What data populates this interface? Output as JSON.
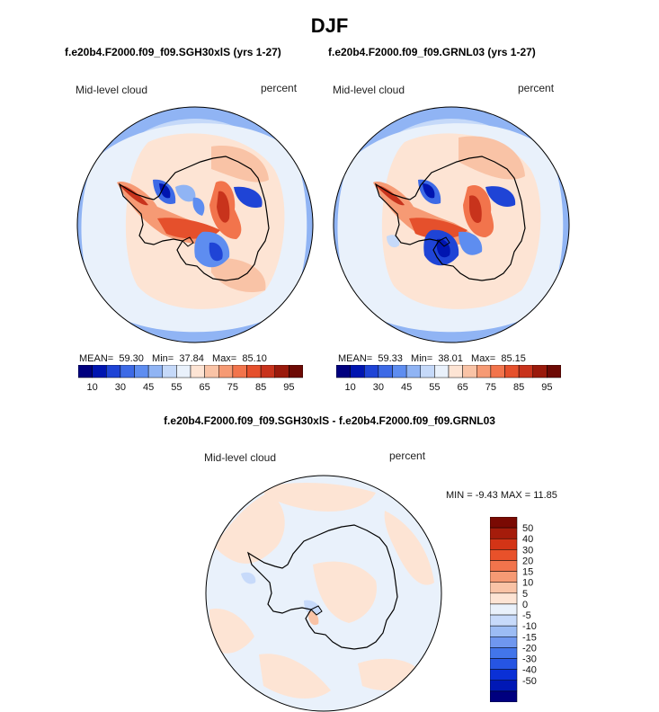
{
  "page_title": "DJF",
  "colors": {
    "abs_scale": [
      "#00007f",
      "#0015b0",
      "#1f44d6",
      "#3d6ae6",
      "#5e8df0",
      "#90b4f4",
      "#c5d9f9",
      "#e9f1fb",
      "#fde4d4",
      "#f9c3a6",
      "#f69a74",
      "#f2744c",
      "#e5502c",
      "#c8331c",
      "#9a1a0c",
      "#6d0a05"
    ],
    "diff_scale": [
      "#00007f",
      "#0018b5",
      "#0a30d6",
      "#2655e3",
      "#4275ea",
      "#6f97ef",
      "#9cbcf4",
      "#c7dafa",
      "#e9f1fb",
      "#fde4d4",
      "#f9c3a6",
      "#f69a74",
      "#f2744c",
      "#e8512a",
      "#d33416",
      "#a51c0b",
      "#7a0a03"
    ],
    "land_outline": "#000000"
  },
  "chart_data": [
    {
      "type": "contour-map",
      "projection": "south-polar-stereographic",
      "subtitle": "f.e20b4.F2000.f09_f09.SGH30xlS (yrs 1-27)",
      "variable_label": "Mid-level cloud",
      "units_label": "percent",
      "stats": {
        "mean_label": "MEAN=",
        "mean": "59.30",
        "min_label": "Min=",
        "min": "37.84",
        "max_label": "Max=",
        "max": "85.10"
      },
      "colorbar_ticks": [
        "10",
        "30",
        "45",
        "55",
        "65",
        "75",
        "85",
        "95"
      ]
    },
    {
      "type": "contour-map",
      "projection": "south-polar-stereographic",
      "subtitle": "f.e20b4.F2000.f09_f09.GRNL03 (yrs 1-27)",
      "variable_label": "Mid-level cloud",
      "units_label": "percent",
      "stats": {
        "mean_label": "MEAN=",
        "mean": "59.33",
        "min_label": "Min=",
        "min": "38.01",
        "max_label": "Max=",
        "max": "85.15"
      },
      "colorbar_ticks": [
        "10",
        "30",
        "45",
        "55",
        "65",
        "75",
        "85",
        "95"
      ]
    },
    {
      "type": "contour-map",
      "projection": "south-polar-stereographic",
      "subtitle": "f.e20b4.F2000.f09_f09.SGH30xlS - f.e20b4.F2000.f09_f09.GRNL03",
      "variable_label": "Mid-level cloud",
      "units_label": "percent",
      "stats_text": "MIN =  -9.43 MAX =  11.85",
      "colorbar_ticks": [
        "50",
        "40",
        "30",
        "20",
        "15",
        "10",
        "5",
        "0",
        "-5",
        "-10",
        "-15",
        "-20",
        "-30",
        "-40",
        "-50"
      ]
    }
  ]
}
